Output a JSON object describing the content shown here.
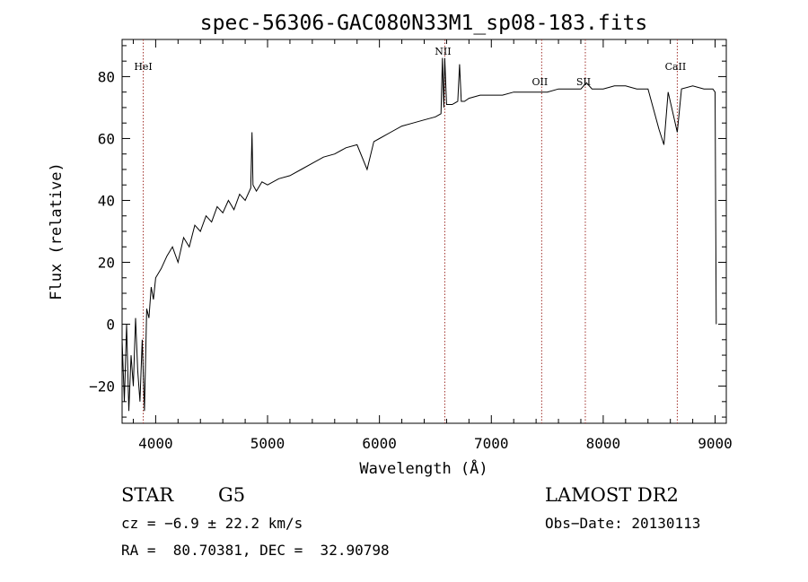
{
  "chart_data": {
    "type": "line",
    "title": "spec-56306-GAC080N33M1_sp08-183.fits",
    "xlabel": "Wavelength (Å)",
    "ylabel": "Flux (relative)",
    "xlim": [
      3700,
      9100
    ],
    "ylim": [
      -32,
      92
    ],
    "x_ticks": [
      4000,
      5000,
      6000,
      7000,
      8000,
      9000
    ],
    "y_ticks": [
      -20,
      0,
      20,
      40,
      60,
      80
    ],
    "grid": false,
    "lines": [
      {
        "label": "HeI",
        "x": 3889
      },
      {
        "label": "NII",
        "x": 6584
      },
      {
        "label": "OII",
        "x": 7450
      },
      {
        "label": "SII",
        "x": 7840
      },
      {
        "label": "CaII",
        "x": 8662
      }
    ],
    "series": [
      {
        "x": [
          3700,
          3720,
          3740,
          3760,
          3780,
          3800,
          3820,
          3840,
          3860,
          3880,
          3900,
          3920,
          3940,
          3960,
          3980,
          4000,
          4050,
          4100,
          4150,
          4200,
          4250,
          4300,
          4350,
          4400,
          4450,
          4500,
          4550,
          4600,
          4650,
          4700,
          4750,
          4800,
          4850,
          4861,
          4870,
          4900,
          4950,
          5000,
          5100,
          5200,
          5300,
          5400,
          5500,
          5600,
          5700,
          5800,
          5890,
          5950,
          6000,
          6100,
          6200,
          6300,
          6400,
          6500,
          6550,
          6563,
          6575,
          6584,
          6600,
          6650,
          6700,
          6716,
          6731,
          6760,
          6800,
          6900,
          7000,
          7100,
          7200,
          7300,
          7400,
          7500,
          7600,
          7700,
          7800,
          7850,
          7900,
          8000,
          8100,
          8200,
          8300,
          8400,
          8498,
          8542,
          8580,
          8662,
          8700,
          8800,
          8900,
          8980,
          9000,
          9010
        ],
        "y": [
          -5,
          -25,
          0,
          -28,
          -10,
          -20,
          2,
          -15,
          -25,
          -5,
          -28,
          5,
          2,
          12,
          8,
          15,
          18,
          22,
          25,
          20,
          28,
          25,
          32,
          30,
          35,
          33,
          38,
          36,
          40,
          37,
          42,
          40,
          44,
          62,
          45,
          43,
          46,
          45,
          47,
          48,
          50,
          52,
          54,
          55,
          57,
          58,
          50,
          59,
          60,
          62,
          64,
          65,
          66,
          67,
          68,
          86,
          70,
          86,
          71,
          71,
          72,
          84,
          72,
          72,
          73,
          74,
          74,
          74,
          75,
          75,
          75,
          75,
          76,
          76,
          76,
          78,
          76,
          76,
          77,
          77,
          76,
          76,
          63,
          58,
          75,
          62,
          76,
          77,
          76,
          76,
          75,
          0
        ]
      }
    ]
  },
  "info": {
    "object_type": "STAR",
    "subclass": "G5",
    "survey": "LAMOST DR2",
    "cz": "cz = −6.9 ± 22.2 km/s",
    "obs_date": "Obs−Date: 20130113",
    "coords": "RA =  80.70381, DEC =  32.90798"
  }
}
